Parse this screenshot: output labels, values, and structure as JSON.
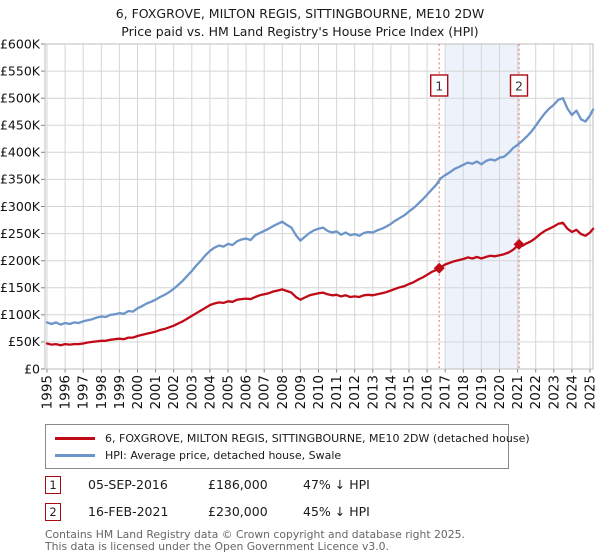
{
  "title": "6, FOXGROVE, MILTON REGIS, SITTINGBOURNE, ME10 2DW",
  "subtitle": "Price paid vs. HM Land Registry's House Price Index (HPI)",
  "chart_data": {
    "type": "line",
    "grid": true,
    "legend_position": "bottom",
    "x_axis": {
      "min": 1995,
      "max": 2025.2,
      "ticks": [
        1995,
        1996,
        1997,
        1998,
        1999,
        2000,
        2001,
        2002,
        2003,
        2004,
        2005,
        2006,
        2007,
        2008,
        2009,
        2010,
        2011,
        2012,
        2013,
        2014,
        2015,
        2016,
        2017,
        2018,
        2019,
        2020,
        2021,
        2022,
        2023,
        2024,
        2025
      ]
    },
    "y_axis": {
      "min": 0,
      "max": 600000,
      "ticks": [
        {
          "value": 0,
          "label": "£0"
        },
        {
          "value": 50000,
          "label": "£50K"
        },
        {
          "value": 100000,
          "label": "£100K"
        },
        {
          "value": 150000,
          "label": "£150K"
        },
        {
          "value": 200000,
          "label": "£200K"
        },
        {
          "value": 250000,
          "label": "£250K"
        },
        {
          "value": 300000,
          "label": "£300K"
        },
        {
          "value": 350000,
          "label": "£350K"
        },
        {
          "value": 400000,
          "label": "£400K"
        },
        {
          "value": 450000,
          "label": "£450K"
        },
        {
          "value": 500000,
          "label": "£500K"
        },
        {
          "value": 550000,
          "label": "£550K"
        },
        {
          "value": 600000,
          "label": "£600K"
        }
      ]
    },
    "highlight_band": {
      "from": 2017.0,
      "to": 2021.12,
      "color": "#edf2fb"
    },
    "events": [
      {
        "label": "1",
        "date": "05-SEP-2016",
        "year": 2016.67,
        "price": 186000,
        "price_label": "£186,000",
        "hpi_note": "47% ↓ HPI"
      },
      {
        "label": "2",
        "date": "16-FEB-2021",
        "year": 2021.08,
        "price": 230000,
        "price_label": "£230,000",
        "hpi_note": "45% ↓ HPI"
      }
    ],
    "series": [
      {
        "name": "6, FOXGROVE, MILTON REGIS, SITTINGBOURNE, ME10 2DW (detached house)",
        "color": "#c00a18",
        "points": [
          [
            1995,
            47000
          ],
          [
            1995.25,
            45000
          ],
          [
            1995.5,
            46000
          ],
          [
            1995.75,
            44000
          ],
          [
            1996,
            46000
          ],
          [
            1996.25,
            45000
          ],
          [
            1996.5,
            46000
          ],
          [
            1996.75,
            46000
          ],
          [
            1997,
            47000
          ],
          [
            1997.25,
            49000
          ],
          [
            1997.5,
            50000
          ],
          [
            1997.75,
            51000
          ],
          [
            1998,
            52000
          ],
          [
            1998.25,
            52000
          ],
          [
            1998.5,
            54000
          ],
          [
            1998.75,
            55000
          ],
          [
            1999,
            56000
          ],
          [
            1999.25,
            55000
          ],
          [
            1999.5,
            58000
          ],
          [
            1999.75,
            58000
          ],
          [
            2000,
            61000
          ],
          [
            2000.25,
            63000
          ],
          [
            2000.5,
            65000
          ],
          [
            2000.75,
            67000
          ],
          [
            2001,
            69000
          ],
          [
            2001.25,
            72000
          ],
          [
            2001.5,
            74000
          ],
          [
            2001.75,
            77000
          ],
          [
            2002,
            80000
          ],
          [
            2002.25,
            84000
          ],
          [
            2002.5,
            88000
          ],
          [
            2002.75,
            93000
          ],
          [
            2003,
            98000
          ],
          [
            2003.25,
            103000
          ],
          [
            2003.5,
            108000
          ],
          [
            2003.75,
            113000
          ],
          [
            2004,
            118000
          ],
          [
            2004.25,
            121000
          ],
          [
            2004.5,
            123000
          ],
          [
            2004.75,
            122000
          ],
          [
            2005,
            125000
          ],
          [
            2005.25,
            124000
          ],
          [
            2005.5,
            128000
          ],
          [
            2005.75,
            129000
          ],
          [
            2006,
            130000
          ],
          [
            2006.25,
            129000
          ],
          [
            2006.5,
            133000
          ],
          [
            2006.75,
            136000
          ],
          [
            2007,
            138000
          ],
          [
            2007.25,
            140000
          ],
          [
            2007.5,
            143000
          ],
          [
            2007.75,
            145000
          ],
          [
            2008,
            147000
          ],
          [
            2008.25,
            144000
          ],
          [
            2008.5,
            141000
          ],
          [
            2008.75,
            133000
          ],
          [
            2009,
            128000
          ],
          [
            2009.25,
            132000
          ],
          [
            2009.5,
            136000
          ],
          [
            2009.75,
            138000
          ],
          [
            2010,
            140000
          ],
          [
            2010.25,
            141000
          ],
          [
            2010.5,
            138000
          ],
          [
            2010.75,
            136000
          ],
          [
            2011,
            137000
          ],
          [
            2011.25,
            134000
          ],
          [
            2011.5,
            136000
          ],
          [
            2011.75,
            133000
          ],
          [
            2012,
            134000
          ],
          [
            2012.25,
            133000
          ],
          [
            2012.5,
            136000
          ],
          [
            2012.75,
            137000
          ],
          [
            2013,
            136000
          ],
          [
            2013.25,
            138000
          ],
          [
            2013.5,
            140000
          ],
          [
            2013.75,
            142000
          ],
          [
            2014,
            145000
          ],
          [
            2014.25,
            148000
          ],
          [
            2014.5,
            151000
          ],
          [
            2014.75,
            153000
          ],
          [
            2015,
            157000
          ],
          [
            2015.25,
            160000
          ],
          [
            2015.5,
            165000
          ],
          [
            2015.75,
            169000
          ],
          [
            2016,
            174000
          ],
          [
            2016.25,
            179000
          ],
          [
            2016.5,
            183000
          ],
          [
            2016.67,
            186000
          ],
          [
            2017,
            193000
          ],
          [
            2017.25,
            196000
          ],
          [
            2017.5,
            199000
          ],
          [
            2017.75,
            201000
          ],
          [
            2018,
            203000
          ],
          [
            2018.25,
            206000
          ],
          [
            2018.5,
            204000
          ],
          [
            2018.75,
            207000
          ],
          [
            2019,
            204000
          ],
          [
            2019.25,
            207000
          ],
          [
            2019.5,
            209000
          ],
          [
            2019.75,
            208000
          ],
          [
            2020,
            210000
          ],
          [
            2020.25,
            212000
          ],
          [
            2020.5,
            215000
          ],
          [
            2020.75,
            220000
          ],
          [
            2021.08,
            230000
          ],
          [
            2021.25,
            227000
          ],
          [
            2021.5,
            232000
          ],
          [
            2021.75,
            236000
          ],
          [
            2022,
            242000
          ],
          [
            2022.25,
            249000
          ],
          [
            2022.5,
            255000
          ],
          [
            2022.75,
            259000
          ],
          [
            2023,
            263000
          ],
          [
            2023.25,
            268000
          ],
          [
            2023.5,
            270000
          ],
          [
            2023.75,
            259000
          ],
          [
            2024,
            253000
          ],
          [
            2024.25,
            257000
          ],
          [
            2024.5,
            249000
          ],
          [
            2024.75,
            246000
          ],
          [
            2025,
            252000
          ],
          [
            2025.17,
            259000
          ]
        ]
      },
      {
        "name": "HPI: Average price, detached house, Swale",
        "color": "#6d95c9",
        "points": [
          [
            1995,
            86000
          ],
          [
            1995.25,
            83000
          ],
          [
            1995.5,
            86000
          ],
          [
            1995.75,
            82000
          ],
          [
            1996,
            85000
          ],
          [
            1996.25,
            83000
          ],
          [
            1996.5,
            86000
          ],
          [
            1996.75,
            85000
          ],
          [
            1997,
            88000
          ],
          [
            1997.25,
            90000
          ],
          [
            1997.5,
            92000
          ],
          [
            1997.75,
            95000
          ],
          [
            1998,
            97000
          ],
          [
            1998.25,
            96000
          ],
          [
            1998.5,
            100000
          ],
          [
            1998.75,
            101000
          ],
          [
            1999,
            103000
          ],
          [
            1999.25,
            102000
          ],
          [
            1999.5,
            107000
          ],
          [
            1999.75,
            106000
          ],
          [
            2000,
            112000
          ],
          [
            2000.25,
            116000
          ],
          [
            2000.5,
            121000
          ],
          [
            2000.75,
            124000
          ],
          [
            2001,
            128000
          ],
          [
            2001.25,
            133000
          ],
          [
            2001.5,
            137000
          ],
          [
            2001.75,
            142000
          ],
          [
            2002,
            148000
          ],
          [
            2002.25,
            155000
          ],
          [
            2002.5,
            163000
          ],
          [
            2002.75,
            172000
          ],
          [
            2003,
            181000
          ],
          [
            2003.25,
            191000
          ],
          [
            2003.5,
            200000
          ],
          [
            2003.75,
            210000
          ],
          [
            2004,
            218000
          ],
          [
            2004.25,
            224000
          ],
          [
            2004.5,
            228000
          ],
          [
            2004.75,
            226000
          ],
          [
            2005,
            231000
          ],
          [
            2005.25,
            229000
          ],
          [
            2005.5,
            236000
          ],
          [
            2005.75,
            239000
          ],
          [
            2006,
            241000
          ],
          [
            2006.25,
            238000
          ],
          [
            2006.5,
            247000
          ],
          [
            2006.75,
            251000
          ],
          [
            2007,
            255000
          ],
          [
            2007.25,
            259000
          ],
          [
            2007.5,
            264000
          ],
          [
            2007.75,
            268000
          ],
          [
            2008,
            272000
          ],
          [
            2008.25,
            266000
          ],
          [
            2008.5,
            261000
          ],
          [
            2008.75,
            247000
          ],
          [
            2009,
            237000
          ],
          [
            2009.25,
            244000
          ],
          [
            2009.5,
            251000
          ],
          [
            2009.75,
            256000
          ],
          [
            2010,
            259000
          ],
          [
            2010.25,
            261000
          ],
          [
            2010.5,
            255000
          ],
          [
            2010.75,
            252000
          ],
          [
            2011,
            254000
          ],
          [
            2011.25,
            248000
          ],
          [
            2011.5,
            252000
          ],
          [
            2011.75,
            247000
          ],
          [
            2012,
            249000
          ],
          [
            2012.25,
            246000
          ],
          [
            2012.5,
            251000
          ],
          [
            2012.75,
            253000
          ],
          [
            2013,
            252000
          ],
          [
            2013.25,
            256000
          ],
          [
            2013.5,
            259000
          ],
          [
            2013.75,
            263000
          ],
          [
            2014,
            268000
          ],
          [
            2014.25,
            274000
          ],
          [
            2014.5,
            279000
          ],
          [
            2014.75,
            284000
          ],
          [
            2015,
            291000
          ],
          [
            2015.25,
            297000
          ],
          [
            2015.5,
            305000
          ],
          [
            2015.75,
            313000
          ],
          [
            2016,
            322000
          ],
          [
            2016.25,
            331000
          ],
          [
            2016.5,
            340000
          ],
          [
            2016.75,
            352000
          ],
          [
            2017,
            358000
          ],
          [
            2017.25,
            363000
          ],
          [
            2017.5,
            369000
          ],
          [
            2017.75,
            373000
          ],
          [
            2018,
            377000
          ],
          [
            2018.25,
            381000
          ],
          [
            2018.5,
            379000
          ],
          [
            2018.75,
            383000
          ],
          [
            2019,
            378000
          ],
          [
            2019.25,
            384000
          ],
          [
            2019.5,
            387000
          ],
          [
            2019.75,
            385000
          ],
          [
            2020,
            390000
          ],
          [
            2020.25,
            392000
          ],
          [
            2020.5,
            399000
          ],
          [
            2020.75,
            408000
          ],
          [
            2021,
            414000
          ],
          [
            2021.25,
            421000
          ],
          [
            2021.5,
            429000
          ],
          [
            2021.75,
            438000
          ],
          [
            2022,
            449000
          ],
          [
            2022.25,
            461000
          ],
          [
            2022.5,
            472000
          ],
          [
            2022.75,
            481000
          ],
          [
            2023,
            488000
          ],
          [
            2023.25,
            497000
          ],
          [
            2023.5,
            500000
          ],
          [
            2023.75,
            481000
          ],
          [
            2024,
            469000
          ],
          [
            2024.25,
            477000
          ],
          [
            2024.5,
            461000
          ],
          [
            2024.75,
            457000
          ],
          [
            2025,
            468000
          ],
          [
            2025.17,
            479000
          ]
        ]
      }
    ]
  },
  "footer": {
    "line1": "Contains HM Land Registry data © Crown copyright and database right 2025.",
    "line2": "This data is licensed under the Open Government Licence v3.0."
  }
}
